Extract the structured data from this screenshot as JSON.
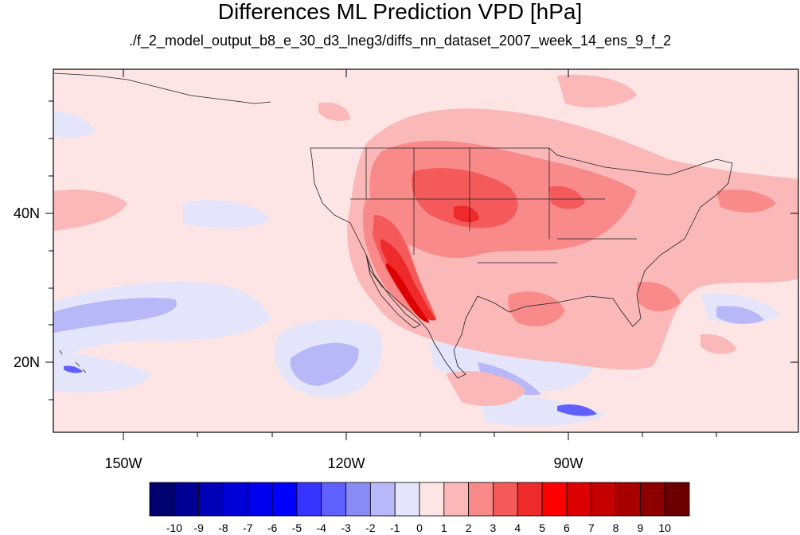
{
  "title": "Differences ML Prediction VPD [hPa]",
  "subtitle": "./f_2_model_output_b8_e_30_d3_lneg3/diffs_nn_dataset_2007_week_14_ens_9_f_2",
  "axes": {
    "lon_ticks": [
      "150W",
      "120W",
      "90W"
    ],
    "lat_ticks": [
      "40N",
      "20N"
    ]
  },
  "colorbar": {
    "labels": [
      "-10",
      "-9",
      "-8",
      "-7",
      "-6",
      "-5",
      "-4",
      "-3",
      "-2",
      "-1",
      "0",
      "1",
      "2",
      "3",
      "4",
      "5",
      "6",
      "7",
      "8",
      "9",
      "10"
    ],
    "colors": [
      "#00006e",
      "#000094",
      "#0000b8",
      "#0000d8",
      "#0000ee",
      "#0000ff",
      "#3535ff",
      "#6060ff",
      "#8a8af5",
      "#b8b8f8",
      "#e4e4fb",
      "#fde5e5",
      "#fbb8b8",
      "#f88a8a",
      "#f45a5a",
      "#ee2a2a",
      "#ff0000",
      "#dd0000",
      "#c40000",
      "#a80000",
      "#8c0000",
      "#6c0000"
    ]
  },
  "map": {
    "field_colors": {
      "background": "#fde5e5",
      "neg_light": "#e4e4fb",
      "neg_mid": "#b8b8f8",
      "neg_strong": "#6060ff",
      "pos_light": "#fbb8b8",
      "pos_mid": "#f88a8a",
      "pos_strong": "#f45a5a",
      "pos_max": "#ee2a2a",
      "pos_extreme": "#dd0000"
    }
  }
}
